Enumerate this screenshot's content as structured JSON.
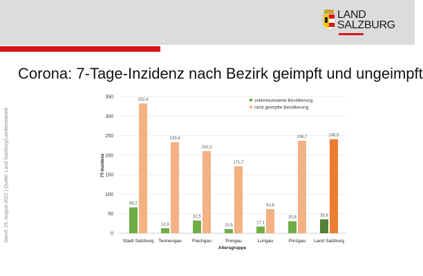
{
  "header": {
    "logo_line1": "LAND",
    "logo_line2": "SALZBURG"
  },
  "slide_title": "Corona: 7-Tage-Inzidenz nach Bezirk geimpft und ungeimpft",
  "side_note": "Stand: 29. August 2021 | Quelle: Land Salzburg/Landesstatistik",
  "chart_data": {
    "type": "bar",
    "xlabel": "Altersgruppe",
    "ylabel": "7T-Inzidenz",
    "ylim": [
      0,
      350
    ],
    "yticks": [
      0,
      50,
      100,
      150,
      200,
      250,
      300,
      350
    ],
    "grid": true,
    "legend_position": "top-right",
    "categories": [
      "Stadt Salzburg",
      "Tennengau",
      "Flachgau",
      "Pongau",
      "Lungau",
      "Pinzgau",
      "Land Salzburg"
    ],
    "series": [
      {
        "name": "vollimmunisierte Bevölkerung",
        "color": "#70ad47",
        "highlight_color": "#548235",
        "values": [
          66.2,
          12.8,
          32.5,
          10.5,
          17.1,
          30.8,
          35.6
        ],
        "labels": [
          "66,2",
          "12,8",
          "32,5",
          "10,5",
          "17,1",
          "30,8",
          "35,6"
        ]
      },
      {
        "name": "nicht geimpfte Bevölkerung",
        "color": "#f4b183",
        "highlight_color": "#ed7d31",
        "values": [
          332.4,
          233.4,
          210.3,
          171.7,
          61.8,
          236.7,
          240.9
        ],
        "labels": [
          "332,4",
          "233,4",
          "210,3",
          "171,7",
          "61,8",
          "236,7",
          "240,9"
        ]
      }
    ]
  }
}
